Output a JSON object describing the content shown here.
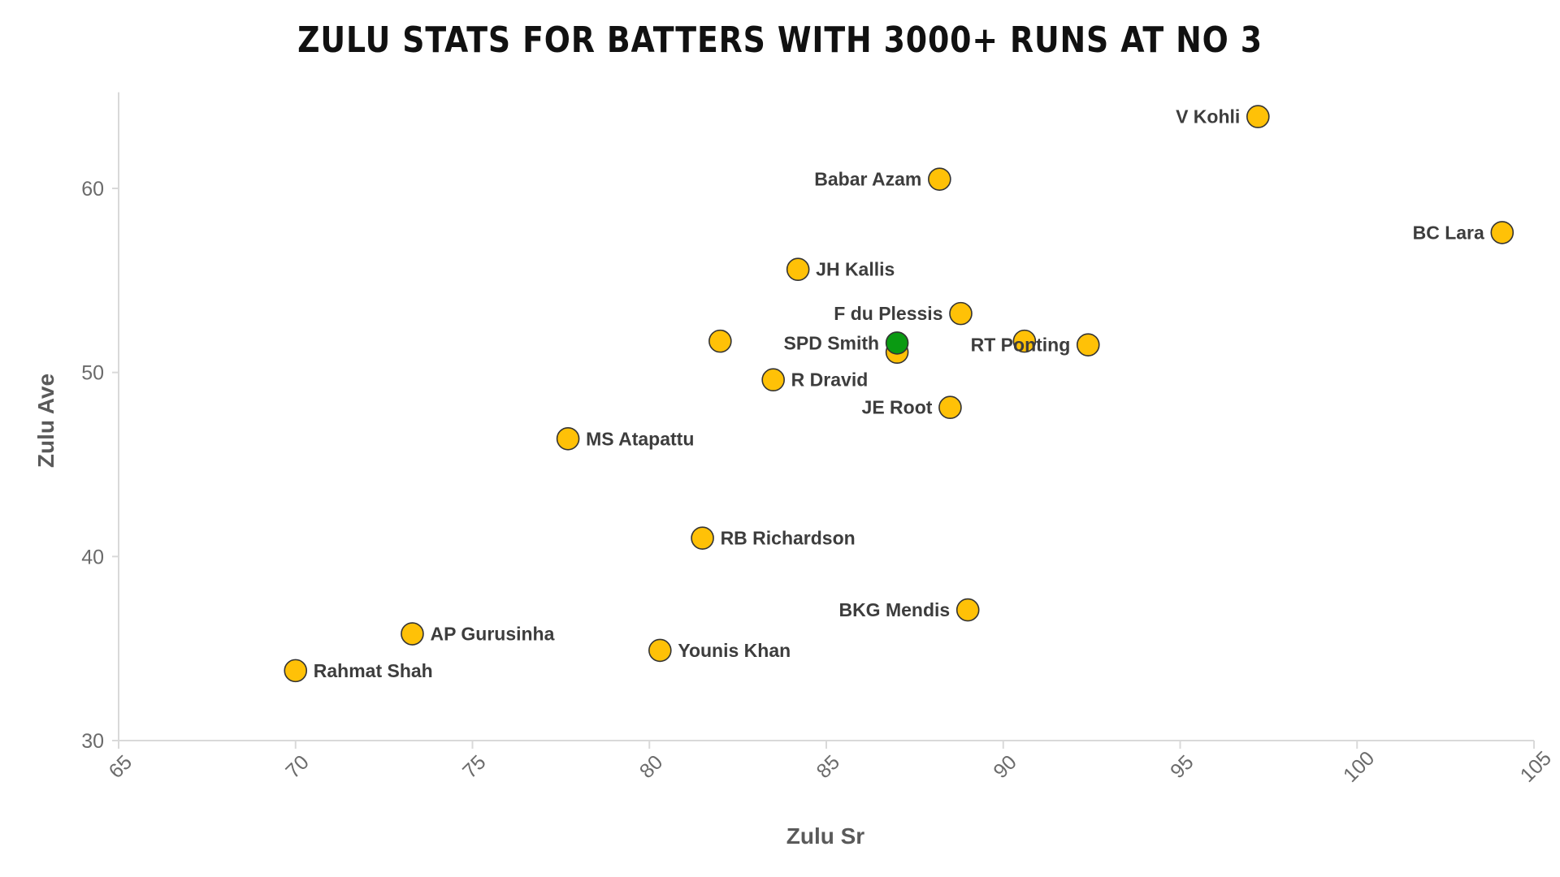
{
  "chart_data": {
    "type": "scatter",
    "title": "ZULU STATS FOR BATTERS WITH 3000+ RUNS AT NO 3",
    "xlabel": "Zulu Sr",
    "ylabel": "Zulu Ave",
    "xlim": [
      65,
      105
    ],
    "ylim": [
      30,
      65
    ],
    "xticks": [
      65,
      70,
      75,
      80,
      85,
      90,
      95,
      100,
      105
    ],
    "yticks": [
      30,
      40,
      50,
      60
    ],
    "grid": false,
    "colors": {
      "default": "#FFC107",
      "highlight": "#0A9A12",
      "stroke": "#333333"
    },
    "points": [
      {
        "label": "V Kohli",
        "x": 97.2,
        "y": 63.9,
        "label_side": "left"
      },
      {
        "label": "Babar Azam",
        "x": 88.2,
        "y": 60.5,
        "label_side": "left"
      },
      {
        "label": "BC Lara",
        "x": 104.1,
        "y": 57.6,
        "label_side": "left"
      },
      {
        "label": "JH Kallis",
        "x": 84.2,
        "y": 55.6,
        "label_side": "right"
      },
      {
        "label": "F du Plessis",
        "x": 88.8,
        "y": 53.2,
        "label_side": "left"
      },
      {
        "label": "",
        "x": 82.0,
        "y": 51.7,
        "label_side": "none"
      },
      {
        "label": "",
        "x": 87.0,
        "y": 51.1,
        "label_side": "none"
      },
      {
        "label": "",
        "x": 90.6,
        "y": 51.7,
        "label_side": "none"
      },
      {
        "label": "RT Ponting",
        "x": 92.4,
        "y": 51.5,
        "label_side": "left"
      },
      {
        "label": "SPD Smith",
        "x": 87.0,
        "y": 51.6,
        "label_side": "left",
        "highlight": true
      },
      {
        "label": "R Dravid",
        "x": 83.5,
        "y": 49.6,
        "label_side": "right"
      },
      {
        "label": "JE Root",
        "x": 88.5,
        "y": 48.1,
        "label_side": "left"
      },
      {
        "label": "MS Atapattu",
        "x": 77.7,
        "y": 46.4,
        "label_side": "right"
      },
      {
        "label": "RB Richardson",
        "x": 81.5,
        "y": 41.0,
        "label_side": "right"
      },
      {
        "label": "BKG Mendis",
        "x": 89.0,
        "y": 37.1,
        "label_side": "left"
      },
      {
        "label": "AP Gurusinha",
        "x": 73.3,
        "y": 35.8,
        "label_side": "right"
      },
      {
        "label": "Younis Khan",
        "x": 80.3,
        "y": 34.9,
        "label_side": "right"
      },
      {
        "label": "Rahmat Shah",
        "x": 70.0,
        "y": 33.8,
        "label_side": "right"
      }
    ]
  }
}
